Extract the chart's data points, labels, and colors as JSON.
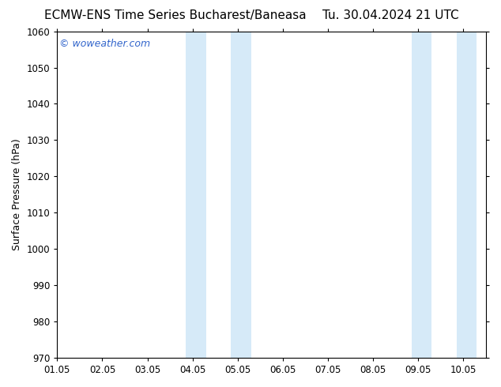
{
  "title_left": "ECMW-ENS Time Series Bucharest/Baneasa",
  "title_right": "Tu. 30.04.2024 21 UTC",
  "ylabel": "Surface Pressure (hPa)",
  "ylim": [
    970,
    1060
  ],
  "yticks": [
    970,
    980,
    990,
    1000,
    1010,
    1020,
    1030,
    1040,
    1050,
    1060
  ],
  "xlim": [
    0.0,
    9.5
  ],
  "xtick_labels": [
    "01.05",
    "02.05",
    "03.05",
    "04.05",
    "05.05",
    "06.05",
    "07.05",
    "08.05",
    "09.05",
    "10.05"
  ],
  "xtick_positions": [
    0.0,
    1.0,
    2.0,
    3.0,
    4.0,
    5.0,
    6.0,
    7.0,
    8.0,
    9.0
  ],
  "shaded_bands": [
    {
      "xmin": 2.85,
      "xmax": 3.3
    },
    {
      "xmin": 3.85,
      "xmax": 4.3
    },
    {
      "xmin": 7.85,
      "xmax": 8.3
    },
    {
      "xmin": 8.85,
      "xmax": 9.3
    }
  ],
  "band_color": "#d6eaf8",
  "watermark_text": "© woweather.com",
  "watermark_color": "#3366cc",
  "watermark_fontsize": 9,
  "background_color": "#ffffff",
  "plot_bg_color": "#ffffff",
  "title_fontsize": 11,
  "axis_label_fontsize": 9,
  "tick_fontsize": 8.5
}
